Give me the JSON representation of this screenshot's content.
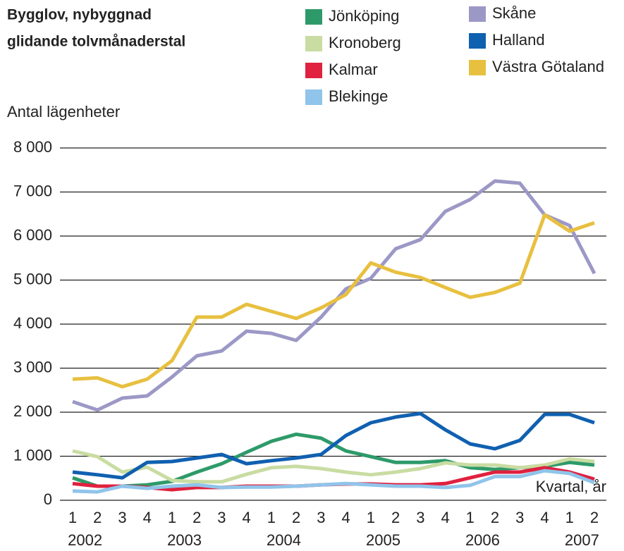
{
  "chart_data": {
    "type": "line",
    "title": "Bygglov, nybyggnad",
    "subtitle": "glidande tolvmånaderstal",
    "y_label": "Antal lägenheter",
    "x_label": "Kvartal, år",
    "categories": [
      "1",
      "2",
      "3",
      "4",
      "1",
      "2",
      "3",
      "4",
      "1",
      "2",
      "3",
      "4",
      "1",
      "2",
      "3",
      "4",
      "1",
      "2",
      "3",
      "4",
      "1",
      "2"
    ],
    "years": [
      "2002",
      "2003",
      "2004",
      "2005",
      "2006",
      "2007"
    ],
    "ylim": [
      0,
      8000
    ],
    "yticks": [
      0,
      {
        "value": 1000,
        "label": "1 000"
      },
      {
        "value": 2000,
        "label": "2 000"
      },
      {
        "value": 3000,
        "label": "3 000"
      },
      {
        "value": 4000,
        "label": "4 000"
      },
      {
        "value": 5000,
        "label": "5 000"
      },
      {
        "value": 6000,
        "label": "6 000"
      },
      {
        "value": 7000,
        "label": "7 000"
      },
      {
        "value": 8000,
        "label": "8 000"
      }
    ],
    "grid": true,
    "series": [
      {
        "name": "Jönköping",
        "color": "#2e9a6a",
        "values": [
          510,
          320,
          320,
          350,
          430,
          640,
          830,
          1090,
          1340,
          1500,
          1410,
          1120,
          990,
          860,
          860,
          900,
          740,
          700,
          740,
          770,
          860,
          800
        ]
      },
      {
        "name": "Kronoberg",
        "color": "#c9dca2",
        "values": [
          1120,
          990,
          640,
          750,
          450,
          420,
          420,
          590,
          740,
          770,
          720,
          640,
          580,
          640,
          720,
          850,
          800,
          800,
          740,
          800,
          940,
          880
        ]
      },
      {
        "name": "Kalmar",
        "color": "#e0213f",
        "values": [
          380,
          320,
          320,
          290,
          240,
          290,
          290,
          320,
          320,
          320,
          350,
          370,
          370,
          350,
          350,
          380,
          510,
          640,
          640,
          740,
          640,
          480
        ]
      },
      {
        "name": "Blekinge",
        "color": "#90c4ea",
        "values": [
          210,
          190,
          320,
          270,
          320,
          350,
          290,
          300,
          300,
          320,
          350,
          380,
          350,
          320,
          320,
          290,
          340,
          540,
          540,
          670,
          610,
          400
        ]
      },
      {
        "name": "Skåne",
        "color": "#9c98c6",
        "values": [
          2240,
          2050,
          2320,
          2370,
          2800,
          3280,
          3390,
          3840,
          3790,
          3630,
          4160,
          4800,
          5040,
          5710,
          5920,
          6560,
          6830,
          7250,
          7200,
          6480,
          6240,
          5150
        ]
      },
      {
        "name": "Halland",
        "color": "#1060b0",
        "values": [
          640,
          580,
          510,
          860,
          880,
          960,
          1040,
          830,
          900,
          960,
          1040,
          1470,
          1760,
          1890,
          1970,
          1600,
          1280,
          1170,
          1360,
          1950,
          1950,
          1760
        ]
      },
      {
        "name": "Västra Götaland",
        "color": "#e8c040",
        "values": [
          2750,
          2780,
          2580,
          2750,
          3170,
          4160,
          4160,
          4450,
          4290,
          4130,
          4370,
          4670,
          5390,
          5180,
          5060,
          4830,
          4610,
          4720,
          4930,
          6480,
          6110,
          6300
        ]
      }
    ]
  }
}
